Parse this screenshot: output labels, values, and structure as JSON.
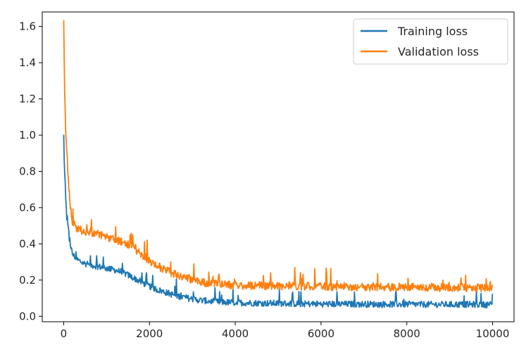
{
  "chart_data": {
    "type": "line",
    "title": "",
    "xlabel": "",
    "ylabel": "",
    "xlim": [
      -500,
      10500
    ],
    "ylim": [
      -0.03,
      1.68
    ],
    "xticks": [
      0,
      2000,
      4000,
      6000,
      8000,
      10000
    ],
    "xtick_labels": [
      "0",
      "2000",
      "4000",
      "6000",
      "8000",
      "10000"
    ],
    "yticks": [
      0.0,
      0.2,
      0.4,
      0.6,
      0.8,
      1.0,
      1.2,
      1.4,
      1.6
    ],
    "ytick_labels": [
      "0.0",
      "0.2",
      "0.4",
      "0.6",
      "0.8",
      "1.0",
      "1.2",
      "1.4",
      "1.6"
    ],
    "grid": false,
    "legend_position": "top-right",
    "series": [
      {
        "name": "Training loss",
        "color": "#1f77b4",
        "x": [
          0,
          20,
          50,
          100,
          150,
          200,
          300,
          400,
          500,
          600,
          800,
          1000,
          1200,
          1400,
          1600,
          1800,
          2000,
          2200,
          2400,
          2600,
          2800,
          3000,
          3200,
          3400,
          3600,
          3800,
          4000,
          4500,
          5000,
          5500,
          6000,
          6500,
          7000,
          7500,
          8000,
          8500,
          9000,
          9500,
          10000
        ],
        "values": [
          0.99,
          0.8,
          0.62,
          0.48,
          0.4,
          0.34,
          0.31,
          0.295,
          0.285,
          0.28,
          0.27,
          0.26,
          0.25,
          0.235,
          0.21,
          0.185,
          0.16,
          0.14,
          0.125,
          0.11,
          0.1,
          0.09,
          0.083,
          0.078,
          0.074,
          0.072,
          0.07,
          0.068,
          0.066,
          0.064,
          0.063,
          0.062,
          0.062,
          0.061,
          0.061,
          0.06,
          0.06,
          0.06,
          0.06
        ]
      },
      {
        "name": "Validation loss",
        "color": "#ff7f0e",
        "x": [
          0,
          20,
          50,
          100,
          150,
          200,
          300,
          400,
          500,
          600,
          800,
          1000,
          1200,
          1400,
          1600,
          1800,
          2000,
          2200,
          2400,
          2600,
          2800,
          3000,
          3200,
          3400,
          3600,
          3800,
          4000,
          4500,
          5000,
          5500,
          6000,
          6500,
          7000,
          7500,
          8000,
          8500,
          9000,
          9500,
          10000
        ],
        "values": [
          1.6,
          1.25,
          1.0,
          0.8,
          0.62,
          0.52,
          0.48,
          0.47,
          0.46,
          0.455,
          0.445,
          0.43,
          0.415,
          0.4,
          0.375,
          0.34,
          0.3,
          0.27,
          0.245,
          0.225,
          0.21,
          0.195,
          0.185,
          0.175,
          0.17,
          0.168,
          0.165,
          0.163,
          0.162,
          0.16,
          0.158,
          0.157,
          0.156,
          0.155,
          0.154,
          0.153,
          0.152,
          0.151,
          0.15
        ]
      }
    ]
  }
}
